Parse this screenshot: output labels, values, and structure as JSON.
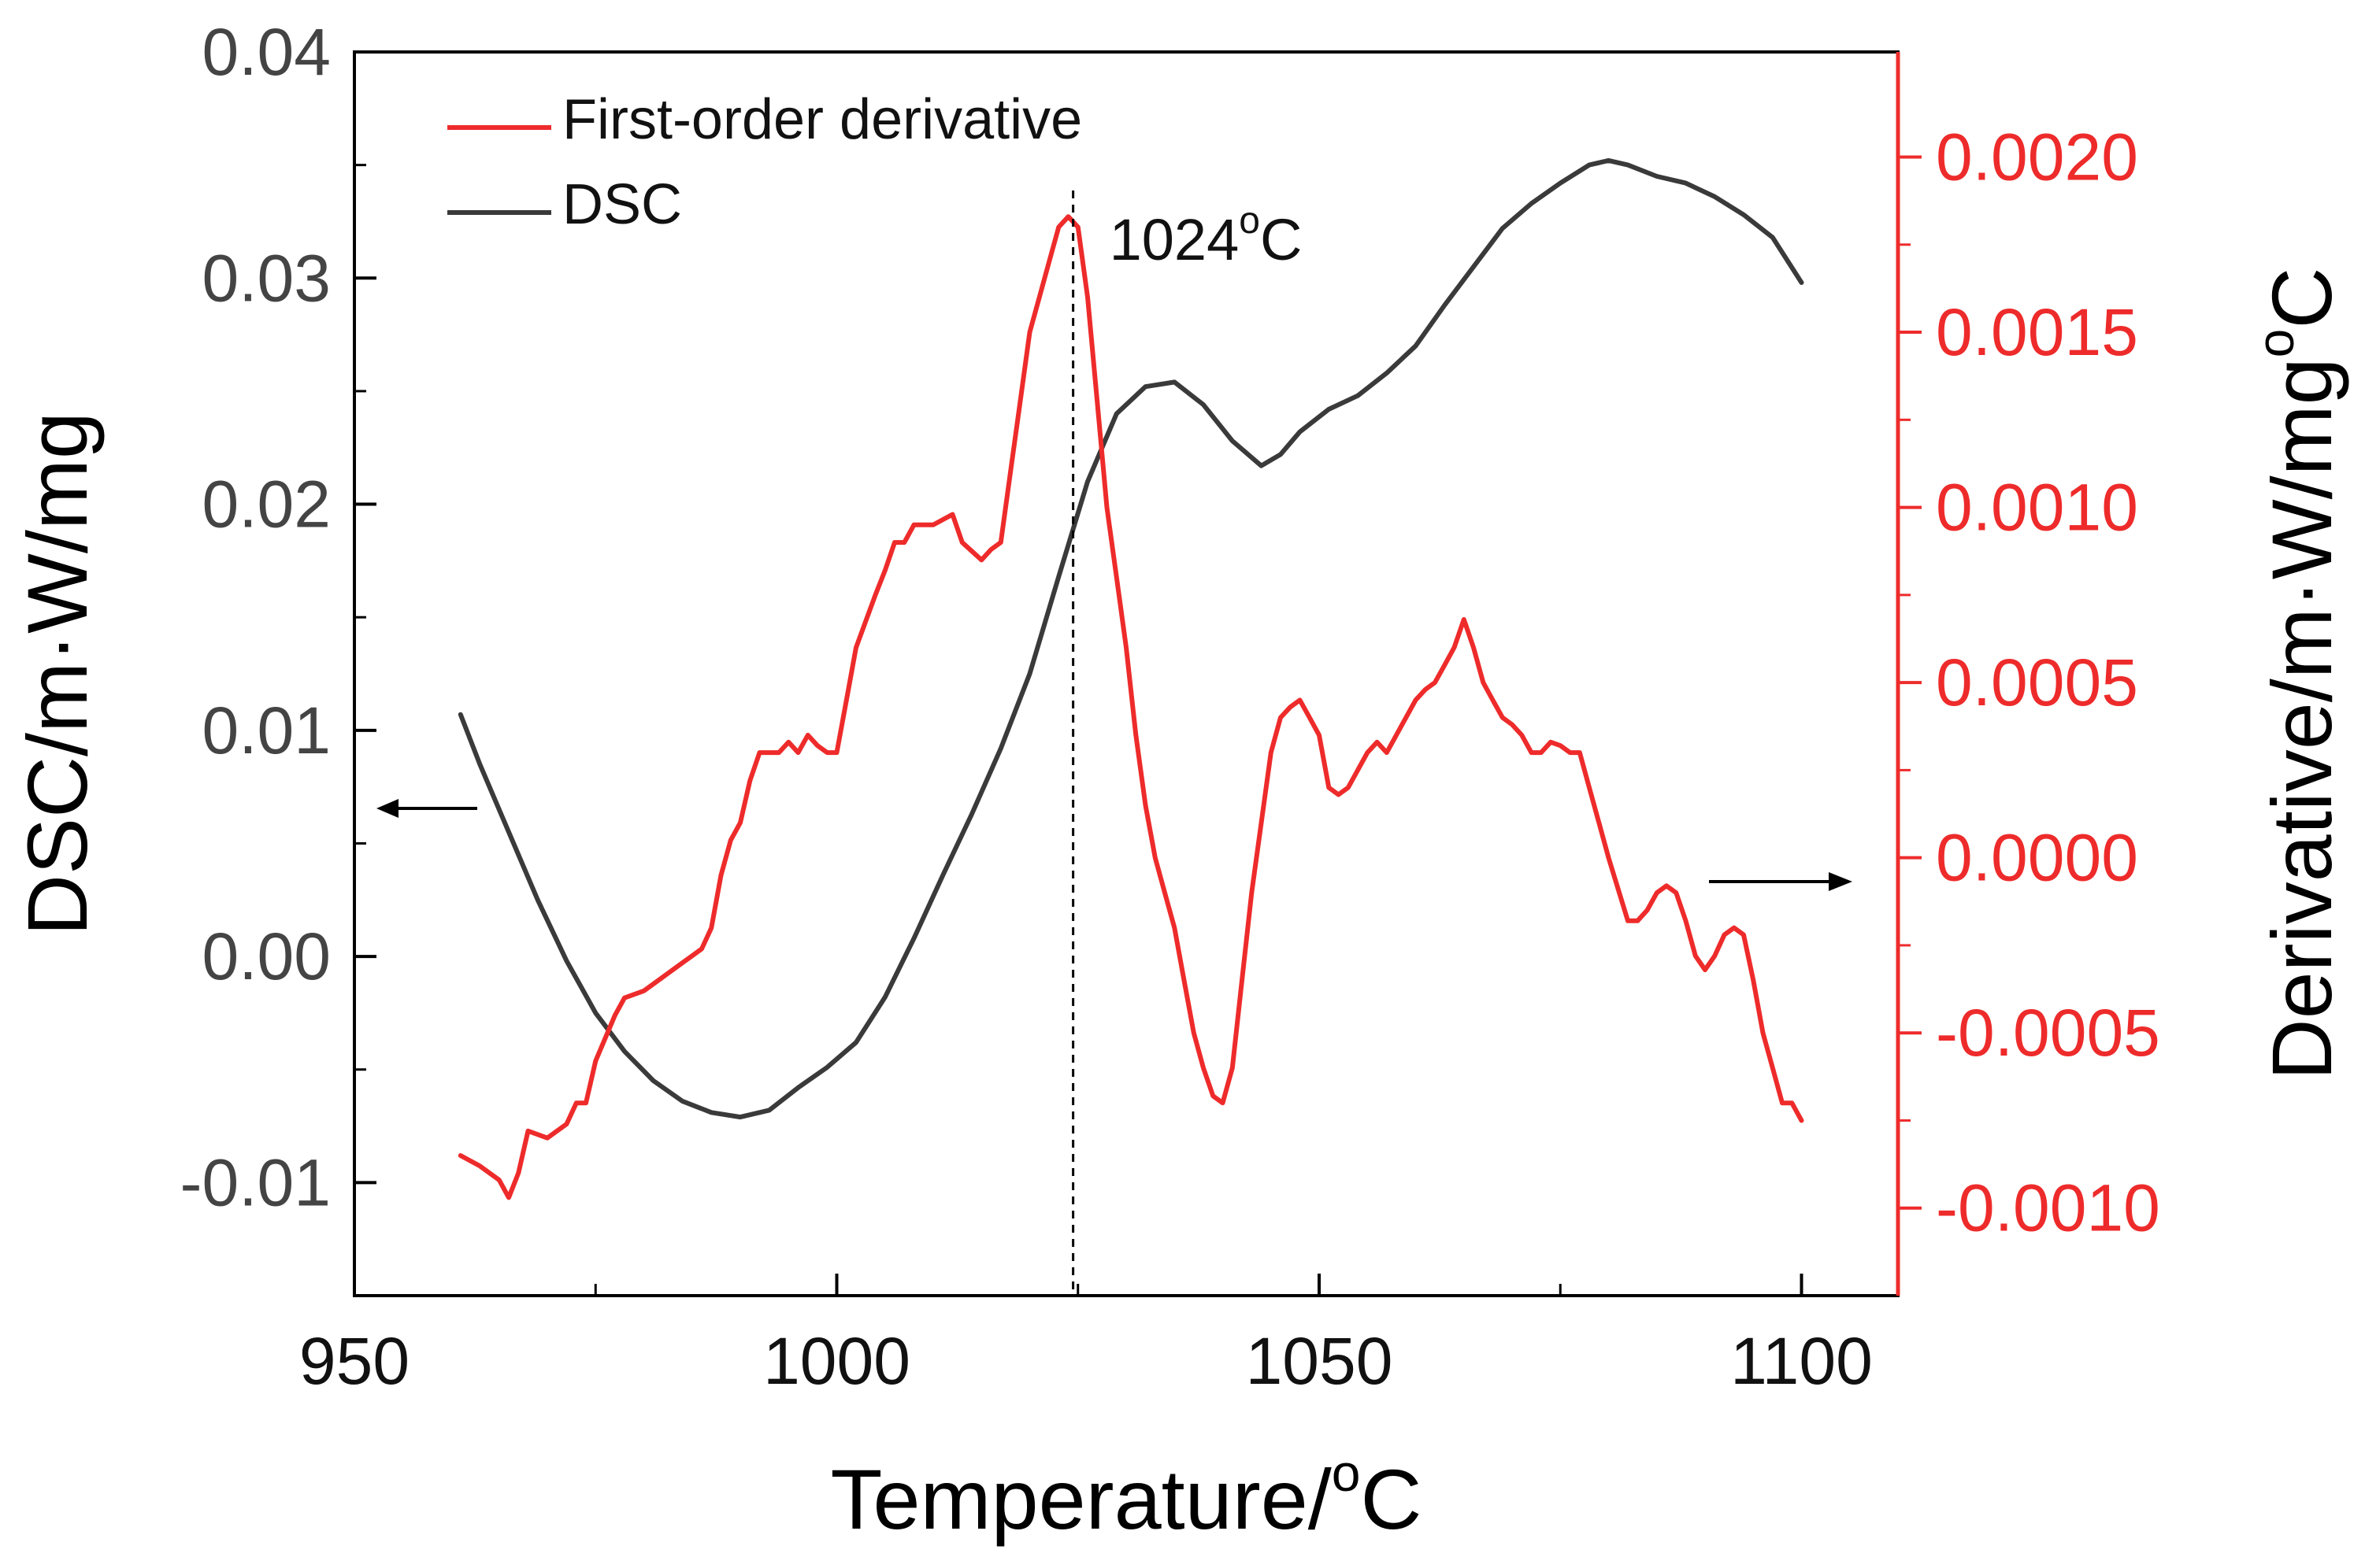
{
  "chart_data": {
    "type": "line",
    "x_axis": {
      "label": "Temperature/",
      "label_sup": "o",
      "label_unit": "C",
      "range": [
        950,
        1110
      ],
      "ticks": [
        950,
        1000,
        1050,
        1100
      ],
      "tick_labels": [
        "950",
        "1000",
        "1050",
        "1100"
      ]
    },
    "y_axis_left": {
      "label": "DSC/m·W/mg",
      "range": [
        -0.015,
        0.04
      ],
      "ticks": [
        -0.01,
        0.0,
        0.01,
        0.02,
        0.03,
        0.04
      ],
      "tick_labels": [
        "-0.01",
        "0.00",
        "0.01",
        "0.02",
        "0.03",
        "0.04"
      ],
      "color": "#444444"
    },
    "y_axis_right": {
      "label": "Derivative/m·W/mg",
      "label_sup": "o",
      "label_unit": "C",
      "range": [
        -0.00125,
        0.0023
      ],
      "ticks": [
        -0.001,
        -0.0005,
        0.0,
        0.0005,
        0.001,
        0.0015,
        0.002
      ],
      "tick_labels": [
        "-0.0010",
        "-0.0005",
        "0.0000",
        "0.0005",
        "0.0010",
        "0.0015",
        "0.0020"
      ],
      "color": "#ee2b2b"
    },
    "legend": {
      "position": "top-left",
      "entries": [
        {
          "name": "First-order derivative",
          "color": "#ee2b2b"
        },
        {
          "name": "DSC",
          "color": "#3a3a3a"
        }
      ]
    },
    "annotation": {
      "text": "1024",
      "sup": "o",
      "unit": "C",
      "x": 1024.5
    },
    "series": [
      {
        "name": "DSC",
        "axis": "left",
        "color": "#3a3a3a",
        "x": [
          961,
          963,
          966,
          969,
          972,
          975,
          978,
          981,
          984,
          987,
          990,
          993,
          996,
          999,
          1002,
          1005,
          1008,
          1011,
          1014,
          1017,
          1020,
          1023,
          1026,
          1029,
          1032,
          1035,
          1038,
          1041,
          1044,
          1046,
          1048,
          1051,
          1054,
          1057,
          1060,
          1063,
          1066,
          1069,
          1072,
          1075,
          1078,
          1080,
          1082,
          1085,
          1088,
          1091,
          1094,
          1097,
          1100
        ],
        "y": [
          0.0107,
          0.0085,
          0.0055,
          0.0025,
          -0.0002,
          -0.0025,
          -0.0042,
          -0.0055,
          -0.0064,
          -0.0069,
          -0.0071,
          -0.0068,
          -0.0058,
          -0.0049,
          -0.0038,
          -0.0018,
          0.0008,
          0.0036,
          0.0063,
          0.0092,
          0.0125,
          0.0168,
          0.021,
          0.024,
          0.0252,
          0.0254,
          0.0244,
          0.0228,
          0.0217,
          0.0222,
          0.0232,
          0.0242,
          0.0248,
          0.0258,
          0.027,
          0.0288,
          0.0305,
          0.0322,
          0.0333,
          0.0342,
          0.035,
          0.0352,
          0.035,
          0.0345,
          0.0342,
          0.0336,
          0.0328,
          0.0318,
          0.0298
        ]
      },
      {
        "name": "First-order derivative",
        "axis": "right",
        "color": "#ee2b2b",
        "x": [
          961,
          963,
          965,
          966,
          967,
          968,
          970,
          972,
          973,
          974,
          975,
          977,
          978,
          980,
          981,
          983,
          984,
          985,
          986,
          987,
          988,
          989,
          990,
          991,
          992,
          994,
          995,
          996,
          997,
          998,
          999,
          1000,
          1001,
          1002,
          1004,
          1005,
          1006,
          1007,
          1008,
          1010,
          1012,
          1013,
          1015,
          1016,
          1017,
          1018,
          1019,
          1020,
          1021,
          1022,
          1023,
          1024,
          1025,
          1026,
          1027,
          1028,
          1029,
          1030,
          1031,
          1032,
          1033,
          1034,
          1035,
          1036,
          1037,
          1038,
          1039,
          1040,
          1041,
          1042,
          1043,
          1045,
          1046,
          1047,
          1048,
          1049,
          1050,
          1051,
          1052,
          1053,
          1054,
          1055,
          1056,
          1057,
          1058,
          1059,
          1060,
          1061,
          1062,
          1063,
          1064,
          1065,
          1066,
          1067,
          1068,
          1069,
          1070,
          1071,
          1072,
          1073,
          1074,
          1075,
          1076,
          1077,
          1078,
          1079,
          1080,
          1082,
          1083,
          1084,
          1085,
          1086,
          1087,
          1088,
          1089,
          1090,
          1091,
          1092,
          1093,
          1094,
          1095,
          1096,
          1097,
          1098,
          1099,
          1100
        ],
        "y": [
          -0.00085,
          -0.00088,
          -0.00092,
          -0.00097,
          -0.0009,
          -0.00078,
          -0.0008,
          -0.00076,
          -0.0007,
          -0.0007,
          -0.00058,
          -0.00045,
          -0.0004,
          -0.00038,
          -0.00036,
          -0.00032,
          -0.0003,
          -0.00028,
          -0.00026,
          -0.0002,
          -5e-05,
          5e-05,
          0.0001,
          0.00022,
          0.0003,
          0.0003,
          0.00033,
          0.0003,
          0.00035,
          0.00032,
          0.0003,
          0.0003,
          0.00045,
          0.0006,
          0.00075,
          0.00082,
          0.0009,
          0.0009,
          0.00095,
          0.00095,
          0.00098,
          0.0009,
          0.00085,
          0.00088,
          0.0009,
          0.0011,
          0.0013,
          0.0015,
          0.0016,
          0.0017,
          0.0018,
          0.00183,
          0.0018,
          0.0016,
          0.0013,
          0.001,
          0.0008,
          0.0006,
          0.00035,
          0.00015,
          0.0,
          -0.0001,
          -0.0002,
          -0.00035,
          -0.0005,
          -0.0006,
          -0.00068,
          -0.0007,
          -0.0006,
          -0.00035,
          -0.0001,
          0.0003,
          0.0004,
          0.00043,
          0.00045,
          0.0004,
          0.00035,
          0.0002,
          0.00018,
          0.0002,
          0.00025,
          0.0003,
          0.00033,
          0.0003,
          0.00035,
          0.0004,
          0.00045,
          0.00048,
          0.0005,
          0.00055,
          0.0006,
          0.00068,
          0.0006,
          0.0005,
          0.00045,
          0.0004,
          0.00038,
          0.00035,
          0.0003,
          0.0003,
          0.00033,
          0.00032,
          0.0003,
          0.0003,
          0.0002,
          0.0001,
          0.0,
          -0.00018,
          -0.00018,
          -0.00015,
          -0.0001,
          -8e-05,
          -0.0001,
          -0.00018,
          -0.00028,
          -0.00032,
          -0.00028,
          -0.00022,
          -0.0002,
          -0.00022,
          -0.00035,
          -0.0005,
          -0.0006,
          -0.0007,
          -0.0007,
          -0.00075
        ]
      }
    ]
  }
}
